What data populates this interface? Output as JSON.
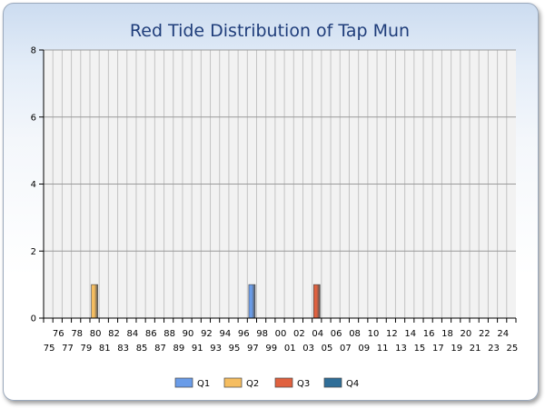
{
  "chart_data": {
    "type": "bar",
    "title": "Red Tide Distribution of Tap Mun",
    "xlabel": "",
    "ylabel": "",
    "categories": [
      "75",
      "76",
      "77",
      "78",
      "79",
      "80",
      "81",
      "82",
      "83",
      "84",
      "85",
      "86",
      "87",
      "88",
      "89",
      "90",
      "91",
      "92",
      "93",
      "94",
      "95",
      "96",
      "97",
      "98",
      "99",
      "00",
      "01",
      "02",
      "03",
      "04",
      "05",
      "06",
      "07",
      "08",
      "09",
      "10",
      "11",
      "12",
      "13",
      "14",
      "15",
      "16",
      "17",
      "18",
      "19",
      "20",
      "21",
      "22",
      "23",
      "24",
      "25"
    ],
    "ylim": [
      0,
      8
    ],
    "yticks": [
      "0",
      "2",
      "4",
      "6",
      "8"
    ],
    "series": [
      {
        "name": "Q1",
        "color": "#6a9ce8",
        "values": [
          0,
          0,
          0,
          0,
          0,
          0,
          0,
          0,
          0,
          0,
          0,
          0,
          0,
          0,
          0,
          0,
          0,
          0,
          0,
          0,
          0,
          0,
          1,
          0,
          0,
          0,
          0,
          0,
          0,
          0,
          0,
          0,
          0,
          0,
          0,
          0,
          0,
          0,
          0,
          0,
          0,
          0,
          0,
          0,
          0,
          0,
          0,
          0,
          0,
          0,
          0
        ]
      },
      {
        "name": "Q2",
        "color": "#f5bd60",
        "values": [
          0,
          0,
          0,
          0,
          0,
          1,
          0,
          0,
          0,
          0,
          0,
          0,
          0,
          0,
          0,
          0,
          0,
          0,
          0,
          0,
          0,
          0,
          0,
          0,
          0,
          0,
          0,
          0,
          0,
          0,
          0,
          0,
          0,
          0,
          0,
          0,
          0,
          0,
          0,
          0,
          0,
          0,
          0,
          0,
          0,
          0,
          0,
          0,
          0,
          0,
          0
        ]
      },
      {
        "name": "Q3",
        "color": "#e0613f",
        "values": [
          0,
          0,
          0,
          0,
          0,
          0,
          0,
          0,
          0,
          0,
          0,
          0,
          0,
          0,
          0,
          0,
          0,
          0,
          0,
          0,
          0,
          0,
          0,
          0,
          0,
          0,
          0,
          0,
          0,
          1,
          0,
          0,
          0,
          0,
          0,
          0,
          0,
          0,
          0,
          0,
          0,
          0,
          0,
          0,
          0,
          0,
          0,
          0,
          0,
          0,
          0
        ]
      },
      {
        "name": "Q4",
        "color": "#2f6e98",
        "values": [
          0,
          0,
          0,
          0,
          0,
          0,
          0,
          0,
          0,
          0,
          0,
          0,
          0,
          0,
          0,
          0,
          0,
          0,
          0,
          0,
          0,
          0,
          0,
          0,
          0,
          0,
          0,
          0,
          0,
          0,
          0,
          0,
          0,
          0,
          0,
          0,
          0,
          0,
          0,
          0,
          0,
          0,
          0,
          0,
          0,
          0,
          0,
          0,
          0,
          0,
          0
        ]
      }
    ],
    "grid": true,
    "legend": "bottom"
  }
}
